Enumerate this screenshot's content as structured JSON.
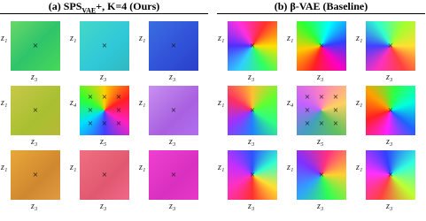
{
  "panels": [
    {
      "label": "(a)",
      "title_main": "SPS",
      "title_sub": "VAE",
      "title_rest": "+, K=4 (Ours)",
      "cells": [
        {
          "y_label": "z₁",
          "x_label": "z₃"
        },
        {
          "y_label": "z₁",
          "x_label": "z₃"
        },
        {
          "y_label": "z₁",
          "x_label": "z₃"
        },
        {
          "y_label": "z₁",
          "x_label": "z₃"
        },
        {
          "y_label": "z₄",
          "x_label": "z₅"
        },
        {
          "y_label": "z₁",
          "x_label": "z₃"
        },
        {
          "y_label": "z₁",
          "x_label": "z₃"
        },
        {
          "y_label": "z₁",
          "x_label": "z₃"
        },
        {
          "y_label": "z₁",
          "x_label": "z₃"
        }
      ]
    },
    {
      "label": "(b)",
      "title_main": "β-VAE (Baseline)",
      "cells": [
        {
          "y_label": "z₁",
          "x_label": "z₃"
        },
        {
          "y_label": "z₁",
          "x_label": "z₃"
        },
        {
          "y_label": "z₁",
          "x_label": "z₃"
        },
        {
          "y_label": "z₁",
          "x_label": "z₃"
        },
        {
          "y_label": "z₄",
          "x_label": "z₅"
        },
        {
          "y_label": "z₁",
          "x_label": "z₃"
        },
        {
          "y_label": "z₁",
          "x_label": "z₃"
        },
        {
          "y_label": "z₁",
          "x_label": "z₃"
        },
        {
          "y_label": "z₁",
          "x_label": "z₃"
        }
      ]
    }
  ]
}
